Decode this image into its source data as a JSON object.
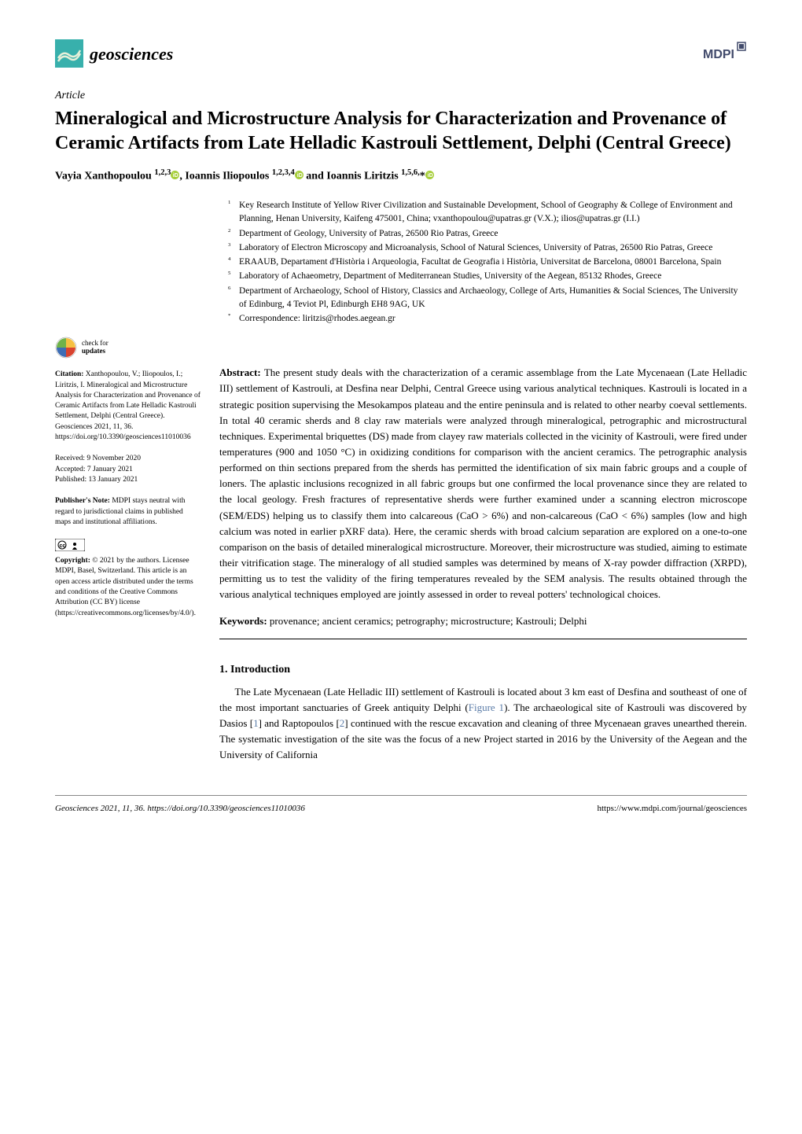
{
  "journal": {
    "name": "geosciences",
    "icon_colors": {
      "bg": "#38b0ac",
      "fg": "#e6f0d9"
    },
    "mdpi_color": "#414a6b"
  },
  "article": {
    "type": "Article",
    "title": "Mineralogical and Microstructure Analysis for Characterization and Provenance of Ceramic Artifacts from Late Helladic Kastrouli Settlement, Delphi (Central Greece)",
    "authors_html": "Vayia Xanthopoulou <sup>1,2,3</sup>{orcid}, Ioannis Iliopoulos <sup>1,2,3,4</sup>{orcid} and Ioannis Liritzis <sup>1,5,6,</sup>*{orcid}"
  },
  "affiliations": [
    {
      "n": "1",
      "text": "Key Research Institute of Yellow River Civilization and Sustainable Development, School of Geography & College of Environment and Planning, Henan University, Kaifeng 475001, China; vxanthopoulou@upatras.gr (V.X.); ilios@upatras.gr (I.I.)"
    },
    {
      "n": "2",
      "text": "Department of Geology, University of Patras, 26500 Rio Patras, Greece"
    },
    {
      "n": "3",
      "text": "Laboratory of Electron Microscopy and Microanalysis, School of Natural Sciences, University of Patras, 26500 Rio Patras, Greece"
    },
    {
      "n": "4",
      "text": "ERAAUB, Departament d'Història i Arqueologia, Facultat de Geografia i Història, Universitat de Barcelona, 08001 Barcelona, Spain"
    },
    {
      "n": "5",
      "text": "Laboratory of Achaeometry, Department of Mediterranean Studies, University of the Aegean, 85132 Rhodes, Greece"
    },
    {
      "n": "6",
      "text": "Department of Archaeology, School of History, Classics and Archaeology, College of Arts, Humanities & Social Sciences, The University of Edinburg, 4 Teviot Pl, Edinburgh EH8 9AG, UK"
    },
    {
      "n": "*",
      "text": "Correspondence: liritzis@rhodes.aegean.gr"
    }
  ],
  "abstract": "The present study deals with the characterization of a ceramic assemblage from the Late Mycenaean (Late Helladic III) settlement of Kastrouli, at Desfina near Delphi, Central Greece using various analytical techniques. Kastrouli is located in a strategic position supervising the Mesokampos plateau and the entire peninsula and is related to other nearby coeval settlements. In total 40 ceramic sherds and 8 clay raw materials were analyzed through mineralogical, petrographic and microstructural techniques. Experimental briquettes (DS) made from clayey raw materials collected in the vicinity of Kastrouli, were fired under temperatures (900 and 1050 °C) in oxidizing conditions for comparison with the ancient ceramics. The petrographic analysis performed on thin sections prepared from the sherds has permitted the identification of six main fabric groups and a couple of loners. The aplastic inclusions recognized in all fabric groups but one confirmed the local provenance since they are related to the local geology. Fresh fractures of representative sherds were further examined under a scanning electron microscope (SEM/EDS) helping us to classify them into calcareous (CaO > 6%) and non-calcareous (CaO < 6%) samples (low and high calcium was noted in earlier pXRF data). Here, the ceramic sherds with broad calcium separation are explored on a one-to-one comparison on the basis of detailed mineralogical microstructure. Moreover, their microstructure was studied, aiming to estimate their vitrification stage. The mineralogy of all studied samples was determined by means of X-ray powder diffraction (XRPD), permitting us to test the validity of the firing temperatures revealed by the SEM analysis. The results obtained through the various analytical techniques employed are jointly assessed in order to reveal potters' technological choices.",
  "keywords": "provenance; ancient ceramics; petrography; microstructure; Kastrouli; Delphi",
  "section1": {
    "heading": "1. Introduction",
    "para": "The Late Mycenaean (Late Helladic III) settlement of Kastrouli is located about 3 km east of Desfina and southeast of one of the most important sanctuaries of Greek antiquity Delphi (Figure 1). The archaeological site of Kastrouli was discovered by Dasios [1] and Raptopoulos [2] continued with the rescue excavation and cleaning of three Mycenaean graves unearthed therein. The systematic investigation of the site was the focus of a new Project started in 2016 by the University of the Aegean and the University of California"
  },
  "sidebar": {
    "check_updates": "check for\nupdates",
    "citation_label": "Citation:",
    "citation": "Xanthopoulou, V.; Iliopoulos, I.; Liritzis, I. Mineralogical and Microstructure Analysis for Characterization and Provenance of Ceramic Artifacts from Late Helladic Kastrouli Settlement, Delphi (Central Greece). Geosciences 2021, 11, 36. https://doi.org/10.3390/geosciences11010036",
    "received": "Received: 9 November 2020",
    "accepted": "Accepted: 7 January 2021",
    "published": "Published: 13 January 2021",
    "pubnote_label": "Publisher's Note:",
    "pubnote": "MDPI stays neutral with regard to jurisdictional claims in published maps and institutional affiliations.",
    "copyright_label": "Copyright:",
    "copyright": "© 2021 by the authors. Licensee MDPI, Basel, Switzerland. This article is an open access article distributed under the terms and conditions of the Creative Commons Attribution (CC BY) license (https://creativecommons.org/licenses/by/4.0/)."
  },
  "footer": {
    "left": "Geosciences 2021, 11, 36. https://doi.org/10.3390/geosciences11010036",
    "right": "https://www.mdpi.com/journal/geosciences"
  },
  "colors": {
    "orcid": "#a6ce39",
    "ref_link": "#5b7ca8",
    "crossref_red": "#d9432f",
    "crossref_blue": "#3d6db5",
    "crossref_yellow": "#f6c042",
    "crossref_green": "#6fb24a"
  }
}
